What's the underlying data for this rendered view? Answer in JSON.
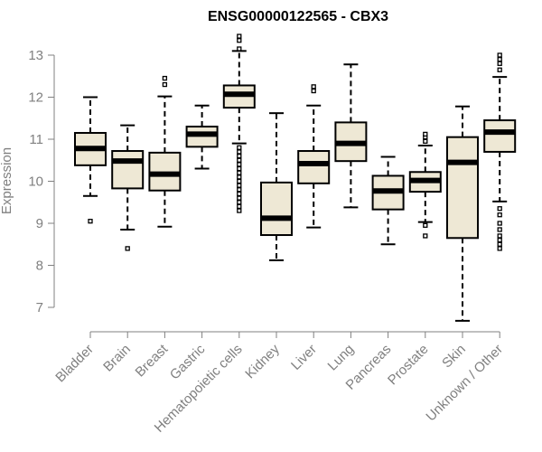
{
  "chart_data": {
    "type": "boxplot",
    "title": "ENSG00000122565 - CBX3",
    "xlabel": "",
    "ylabel": "Expression",
    "ylim": [
      7,
      13
    ],
    "yticks": [
      7,
      8,
      9,
      10,
      11,
      12,
      13
    ],
    "box_fill": "#EEE8D5",
    "box_stroke": "#000000",
    "axis_color": "#808080",
    "categories": [
      "Bladder",
      "Brain",
      "Breast",
      "Gastric",
      "Hematopoietic cells",
      "Kidney",
      "Liver",
      "Lung",
      "Pancreas",
      "Prostate",
      "Skin",
      "Unknown / Other"
    ],
    "series": [
      {
        "category": "Bladder",
        "whisker_low": 9.65,
        "q1": 10.38,
        "median": 10.78,
        "q3": 11.15,
        "whisker_high": 12.0,
        "outliers": [
          9.05
        ]
      },
      {
        "category": "Brain",
        "whisker_low": 8.85,
        "q1": 9.83,
        "median": 10.48,
        "q3": 10.72,
        "whisker_high": 11.33,
        "outliers": [
          8.4
        ]
      },
      {
        "category": "Breast",
        "whisker_low": 8.92,
        "q1": 9.78,
        "median": 10.17,
        "q3": 10.68,
        "whisker_high": 12.02,
        "outliers": [
          12.3,
          12.45
        ]
      },
      {
        "category": "Gastric",
        "whisker_low": 10.3,
        "q1": 10.82,
        "median": 11.12,
        "q3": 11.3,
        "whisker_high": 11.8,
        "outliers": []
      },
      {
        "category": "Hematopoietic cells",
        "whisker_low": 10.9,
        "q1": 11.75,
        "median": 12.07,
        "q3": 12.28,
        "whisker_high": 13.1,
        "outliers": [
          9.3,
          9.4,
          9.5,
          9.6,
          9.7,
          9.8,
          9.9,
          10.0,
          10.1,
          10.2,
          10.3,
          10.4,
          10.5,
          10.6,
          10.7,
          10.8,
          13.15,
          13.35,
          13.45
        ]
      },
      {
        "category": "Kidney",
        "whisker_low": 8.12,
        "q1": 8.72,
        "median": 9.12,
        "q3": 9.97,
        "whisker_high": 11.62,
        "outliers": []
      },
      {
        "category": "Liver",
        "whisker_low": 8.9,
        "q1": 9.95,
        "median": 10.42,
        "q3": 10.72,
        "whisker_high": 11.8,
        "outliers": [
          12.15,
          12.25
        ]
      },
      {
        "category": "Lung",
        "whisker_low": 9.38,
        "q1": 10.48,
        "median": 10.9,
        "q3": 11.4,
        "whisker_high": 12.78,
        "outliers": []
      },
      {
        "category": "Pancreas",
        "whisker_low": 8.5,
        "q1": 9.33,
        "median": 9.77,
        "q3": 10.13,
        "whisker_high": 10.58,
        "outliers": []
      },
      {
        "category": "Prostate",
        "whisker_low": 9.03,
        "q1": 9.75,
        "median": 10.02,
        "q3": 10.22,
        "whisker_high": 10.85,
        "outliers": [
          8.7,
          8.95,
          10.95,
          11.05,
          11.12
        ]
      },
      {
        "category": "Skin",
        "whisker_low": 6.68,
        "q1": 8.65,
        "median": 10.45,
        "q3": 11.05,
        "whisker_high": 11.78,
        "outliers": []
      },
      {
        "category": "Unknown / Other",
        "whisker_low": 9.52,
        "q1": 10.7,
        "median": 11.17,
        "q3": 11.45,
        "whisker_high": 12.48,
        "outliers": [
          8.4,
          8.5,
          8.6,
          8.7,
          8.85,
          9.0,
          9.2,
          9.35,
          12.65,
          12.8,
          12.9,
          13.0
        ]
      }
    ]
  }
}
